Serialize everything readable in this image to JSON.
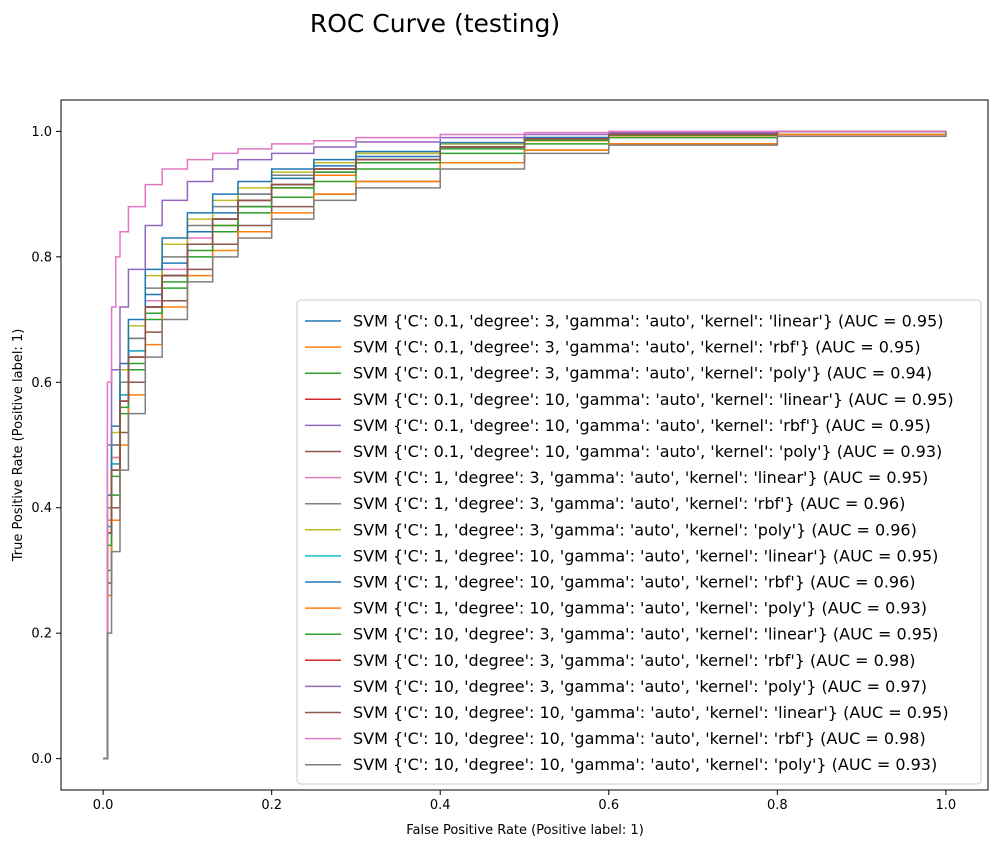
{
  "chart_data": {
    "type": "line",
    "title": "ROC Curve (testing)",
    "xlabel": "False Positive Rate (Positive label: 1)",
    "ylabel": "True Positive Rate (Positive label: 1)",
    "xlim": [
      -0.05,
      1.05
    ],
    "ylim": [
      -0.05,
      1.05
    ],
    "xticks": [
      "0.0",
      "0.2",
      "0.4",
      "0.6",
      "0.8",
      "1.0"
    ],
    "yticks": [
      "0.0",
      "0.2",
      "0.4",
      "0.6",
      "0.8",
      "1.0"
    ],
    "grid": false,
    "legend_position": "lower-right",
    "series": [
      {
        "name": "SVM {'C': 0.1, 'degree': 3, 'gamma': 'auto', 'kernel': 'linear'} (AUC = 0.95)",
        "color": "#1f77b4",
        "x": [
          0,
          0.005,
          0.01,
          0.02,
          0.03,
          0.05,
          0.07,
          0.1,
          0.13,
          0.16,
          0.2,
          0.25,
          0.3,
          0.4,
          0.5,
          0.6,
          0.8,
          1.0
        ],
        "y": [
          0,
          0.4,
          0.5,
          0.6,
          0.67,
          0.74,
          0.79,
          0.84,
          0.87,
          0.9,
          0.925,
          0.945,
          0.96,
          0.98,
          0.99,
          0.995,
          1.0,
          1.0
        ]
      },
      {
        "name": "SVM {'C': 0.1, 'degree': 3, 'gamma': 'auto', 'kernel': 'rbf'} (AUC = 0.95)",
        "color": "#ff7f0e",
        "x": [
          0,
          0.005,
          0.01,
          0.02,
          0.03,
          0.05,
          0.07,
          0.1,
          0.13,
          0.16,
          0.2,
          0.25,
          0.3,
          0.4,
          0.5,
          0.6,
          0.8,
          1.0
        ],
        "y": [
          0,
          0.38,
          0.48,
          0.58,
          0.65,
          0.72,
          0.77,
          0.82,
          0.85,
          0.88,
          0.91,
          0.93,
          0.95,
          0.975,
          0.985,
          0.993,
          1.0,
          1.0
        ]
      },
      {
        "name": "SVM {'C': 0.1, 'degree': 3, 'gamma': 'auto', 'kernel': 'poly'} (AUC = 0.94)",
        "color": "#2ca02c",
        "x": [
          0,
          0.005,
          0.01,
          0.02,
          0.03,
          0.05,
          0.07,
          0.1,
          0.13,
          0.16,
          0.2,
          0.25,
          0.3,
          0.4,
          0.5,
          0.6,
          0.8,
          1.0
        ],
        "y": [
          0,
          0.3,
          0.42,
          0.55,
          0.62,
          0.7,
          0.75,
          0.8,
          0.84,
          0.87,
          0.895,
          0.92,
          0.94,
          0.965,
          0.98,
          0.99,
          1.0,
          1.0
        ]
      },
      {
        "name": "SVM {'C': 0.1, 'degree': 10, 'gamma': 'auto', 'kernel': 'linear'} (AUC = 0.95)",
        "color": "#d62728",
        "x": [
          0,
          0.005,
          0.01,
          0.02,
          0.03,
          0.05,
          0.07,
          0.1,
          0.13,
          0.16,
          0.2,
          0.25,
          0.3,
          0.4,
          0.5,
          0.6,
          0.8,
          1.0
        ],
        "y": [
          0,
          0.36,
          0.47,
          0.57,
          0.64,
          0.72,
          0.77,
          0.82,
          0.86,
          0.89,
          0.915,
          0.94,
          0.955,
          0.975,
          0.988,
          0.995,
          1.0,
          1.0
        ]
      },
      {
        "name": "SVM {'C': 0.1, 'degree': 10, 'gamma': 'auto', 'kernel': 'rbf'} (AUC = 0.95)",
        "color": "#9467bd",
        "x": [
          0,
          0.005,
          0.01,
          0.02,
          0.03,
          0.05,
          0.07,
          0.1,
          0.13,
          0.16,
          0.2,
          0.25,
          0.3,
          0.4,
          0.5,
          0.6,
          0.8,
          1.0
        ],
        "y": [
          0,
          0.37,
          0.47,
          0.58,
          0.65,
          0.72,
          0.77,
          0.82,
          0.86,
          0.88,
          0.915,
          0.935,
          0.955,
          0.975,
          0.988,
          0.995,
          1.0,
          1.0
        ]
      },
      {
        "name": "SVM {'C': 0.1, 'degree': 10, 'gamma': 'auto', 'kernel': 'poly'} (AUC = 0.93)",
        "color": "#8c564b",
        "x": [
          0,
          0.005,
          0.01,
          0.02,
          0.03,
          0.05,
          0.07,
          0.1,
          0.13,
          0.16,
          0.2,
          0.25,
          0.3,
          0.4,
          0.5,
          0.6,
          0.8,
          1.0
        ],
        "y": [
          0,
          0.28,
          0.4,
          0.52,
          0.6,
          0.68,
          0.73,
          0.78,
          0.82,
          0.85,
          0.88,
          0.9,
          0.92,
          0.95,
          0.97,
          0.98,
          0.995,
          1.0
        ]
      },
      {
        "name": "SVM {'C': 1, 'degree': 3, 'gamma': 'auto', 'kernel': 'linear'} (AUC = 0.95)",
        "color": "#e377c2",
        "x": [
          0,
          0.005,
          0.01,
          0.02,
          0.03,
          0.05,
          0.07,
          0.1,
          0.13,
          0.16,
          0.2,
          0.25,
          0.3,
          0.4,
          0.5,
          0.6,
          0.8,
          1.0
        ],
        "y": [
          0,
          0.37,
          0.48,
          0.58,
          0.65,
          0.73,
          0.78,
          0.83,
          0.86,
          0.89,
          0.915,
          0.94,
          0.955,
          0.975,
          0.988,
          0.995,
          1.0,
          1.0
        ]
      },
      {
        "name": "SVM {'C': 1, 'degree': 3, 'gamma': 'auto', 'kernel': 'rbf'} (AUC = 0.96)",
        "color": "#7f7f7f",
        "x": [
          0,
          0.005,
          0.01,
          0.02,
          0.03,
          0.05,
          0.07,
          0.1,
          0.13,
          0.16,
          0.2,
          0.25,
          0.3,
          0.4,
          0.5,
          0.6,
          0.8,
          1.0
        ],
        "y": [
          0,
          0.4,
          0.5,
          0.6,
          0.67,
          0.75,
          0.8,
          0.85,
          0.88,
          0.9,
          0.93,
          0.95,
          0.965,
          0.98,
          0.99,
          0.996,
          1.0,
          1.0
        ]
      },
      {
        "name": "SVM {'C': 1, 'degree': 3, 'gamma': 'auto', 'kernel': 'poly'} (AUC = 0.96)",
        "color": "#bcbd22",
        "x": [
          0,
          0.005,
          0.01,
          0.02,
          0.03,
          0.05,
          0.07,
          0.1,
          0.13,
          0.16,
          0.2,
          0.25,
          0.3,
          0.4,
          0.5,
          0.6,
          0.8,
          1.0
        ],
        "y": [
          0,
          0.42,
          0.52,
          0.62,
          0.69,
          0.77,
          0.82,
          0.86,
          0.89,
          0.91,
          0.935,
          0.95,
          0.965,
          0.98,
          0.99,
          0.996,
          1.0,
          1.0
        ]
      },
      {
        "name": "SVM {'C': 1, 'degree': 10, 'gamma': 'auto', 'kernel': 'linear'} (AUC = 0.95)",
        "color": "#17becf",
        "x": [
          0,
          0.005,
          0.01,
          0.02,
          0.03,
          0.05,
          0.07,
          0.1,
          0.13,
          0.16,
          0.2,
          0.25,
          0.3,
          0.4,
          0.5,
          0.6,
          0.8,
          1.0
        ],
        "y": [
          0,
          0.37,
          0.47,
          0.58,
          0.65,
          0.72,
          0.77,
          0.82,
          0.86,
          0.89,
          0.915,
          0.94,
          0.955,
          0.975,
          0.988,
          0.995,
          1.0,
          1.0
        ]
      },
      {
        "name": "SVM {'C': 1, 'degree': 10, 'gamma': 'auto', 'kernel': 'rbf'} (AUC = 0.96)",
        "color": "#1f77b4",
        "x": [
          0,
          0.005,
          0.01,
          0.02,
          0.03,
          0.05,
          0.07,
          0.1,
          0.13,
          0.16,
          0.2,
          0.25,
          0.3,
          0.4,
          0.5,
          0.6,
          0.8,
          1.0
        ],
        "y": [
          0,
          0.42,
          0.53,
          0.63,
          0.7,
          0.78,
          0.83,
          0.87,
          0.9,
          0.92,
          0.94,
          0.955,
          0.968,
          0.982,
          0.99,
          0.996,
          1.0,
          1.0
        ]
      },
      {
        "name": "SVM {'C': 1, 'degree': 10, 'gamma': 'auto', 'kernel': 'poly'} (AUC = 0.93)",
        "color": "#ff7f0e",
        "x": [
          0,
          0.005,
          0.01,
          0.02,
          0.03,
          0.05,
          0.07,
          0.1,
          0.13,
          0.16,
          0.2,
          0.25,
          0.3,
          0.4,
          0.5,
          0.6,
          0.8,
          1.0
        ],
        "y": [
          0,
          0.26,
          0.38,
          0.5,
          0.58,
          0.66,
          0.72,
          0.77,
          0.81,
          0.84,
          0.87,
          0.9,
          0.92,
          0.95,
          0.97,
          0.98,
          0.995,
          1.0
        ]
      },
      {
        "name": "SVM {'C': 10, 'degree': 3, 'gamma': 'auto', 'kernel': 'linear'} (AUC = 0.95)",
        "color": "#2ca02c",
        "x": [
          0,
          0.005,
          0.01,
          0.02,
          0.03,
          0.05,
          0.07,
          0.1,
          0.13,
          0.16,
          0.2,
          0.25,
          0.3,
          0.4,
          0.5,
          0.6,
          0.8,
          1.0
        ],
        "y": [
          0,
          0.34,
          0.45,
          0.56,
          0.63,
          0.71,
          0.76,
          0.81,
          0.85,
          0.88,
          0.91,
          0.935,
          0.95,
          0.972,
          0.986,
          0.994,
          1.0,
          1.0
        ]
      },
      {
        "name": "SVM {'C': 10, 'degree': 3, 'gamma': 'auto', 'kernel': 'rbf'} (AUC = 0.98)",
        "color": "#d62728",
        "x": [
          0,
          0.005,
          0.01,
          0.02,
          0.03,
          0.05,
          0.07,
          0.1,
          0.13,
          0.16,
          0.2,
          0.25,
          0.3,
          0.4,
          0.5,
          0.6,
          0.8,
          1.0
        ],
        "y": [
          0,
          0.36,
          0.46,
          0.57,
          0.64,
          0.72,
          0.77,
          0.82,
          0.86,
          0.89,
          0.915,
          0.94,
          0.955,
          0.975,
          0.988,
          0.995,
          1.0,
          1.0
        ]
      },
      {
        "name": "SVM {'C': 10, 'degree': 3, 'gamma': 'auto', 'kernel': 'poly'} (AUC = 0.97)",
        "color": "#9467bd",
        "x": [
          0,
          0.005,
          0.01,
          0.02,
          0.03,
          0.05,
          0.07,
          0.1,
          0.13,
          0.16,
          0.2,
          0.25,
          0.3,
          0.4,
          0.5,
          0.6,
          0.8,
          1.0
        ],
        "y": [
          0,
          0.5,
          0.62,
          0.72,
          0.78,
          0.85,
          0.89,
          0.92,
          0.94,
          0.955,
          0.965,
          0.975,
          0.983,
          0.99,
          0.995,
          0.998,
          1.0,
          1.0
        ]
      },
      {
        "name": "SVM {'C': 10, 'degree': 10, 'gamma': 'auto', 'kernel': 'linear'} (AUC = 0.95)",
        "color": "#8c564b",
        "x": [
          0,
          0.005,
          0.01,
          0.02,
          0.03,
          0.05,
          0.07,
          0.1,
          0.13,
          0.16,
          0.2,
          0.25,
          0.3,
          0.4,
          0.5,
          0.6,
          0.8,
          1.0
        ],
        "y": [
          0,
          0.36,
          0.46,
          0.57,
          0.64,
          0.72,
          0.77,
          0.82,
          0.86,
          0.89,
          0.915,
          0.94,
          0.955,
          0.975,
          0.988,
          0.995,
          1.0,
          1.0
        ]
      },
      {
        "name": "SVM {'C': 10, 'degree': 10, 'gamma': 'auto', 'kernel': 'rbf'} (AUC = 0.98)",
        "color": "#e377c2",
        "x": [
          0,
          0.005,
          0.01,
          0.015,
          0.02,
          0.03,
          0.05,
          0.07,
          0.1,
          0.13,
          0.16,
          0.2,
          0.25,
          0.3,
          0.4,
          0.5,
          0.6,
          0.8,
          1.0
        ],
        "y": [
          0,
          0.6,
          0.72,
          0.8,
          0.84,
          0.88,
          0.915,
          0.94,
          0.955,
          0.965,
          0.972,
          0.98,
          0.985,
          0.99,
          0.995,
          0.998,
          1.0,
          1.0,
          1.0
        ]
      },
      {
        "name": "SVM {'C': 10, 'degree': 10, 'gamma': 'auto', 'kernel': 'poly'} (AUC = 0.93)",
        "color": "#7f7f7f",
        "x": [
          0,
          0.005,
          0.01,
          0.02,
          0.03,
          0.05,
          0.07,
          0.1,
          0.13,
          0.16,
          0.2,
          0.25,
          0.3,
          0.4,
          0.5,
          0.6,
          0.8,
          1.0
        ],
        "y": [
          0,
          0.2,
          0.33,
          0.46,
          0.55,
          0.64,
          0.7,
          0.76,
          0.8,
          0.83,
          0.86,
          0.89,
          0.91,
          0.94,
          0.965,
          0.978,
          0.992,
          1.0
        ]
      }
    ]
  }
}
